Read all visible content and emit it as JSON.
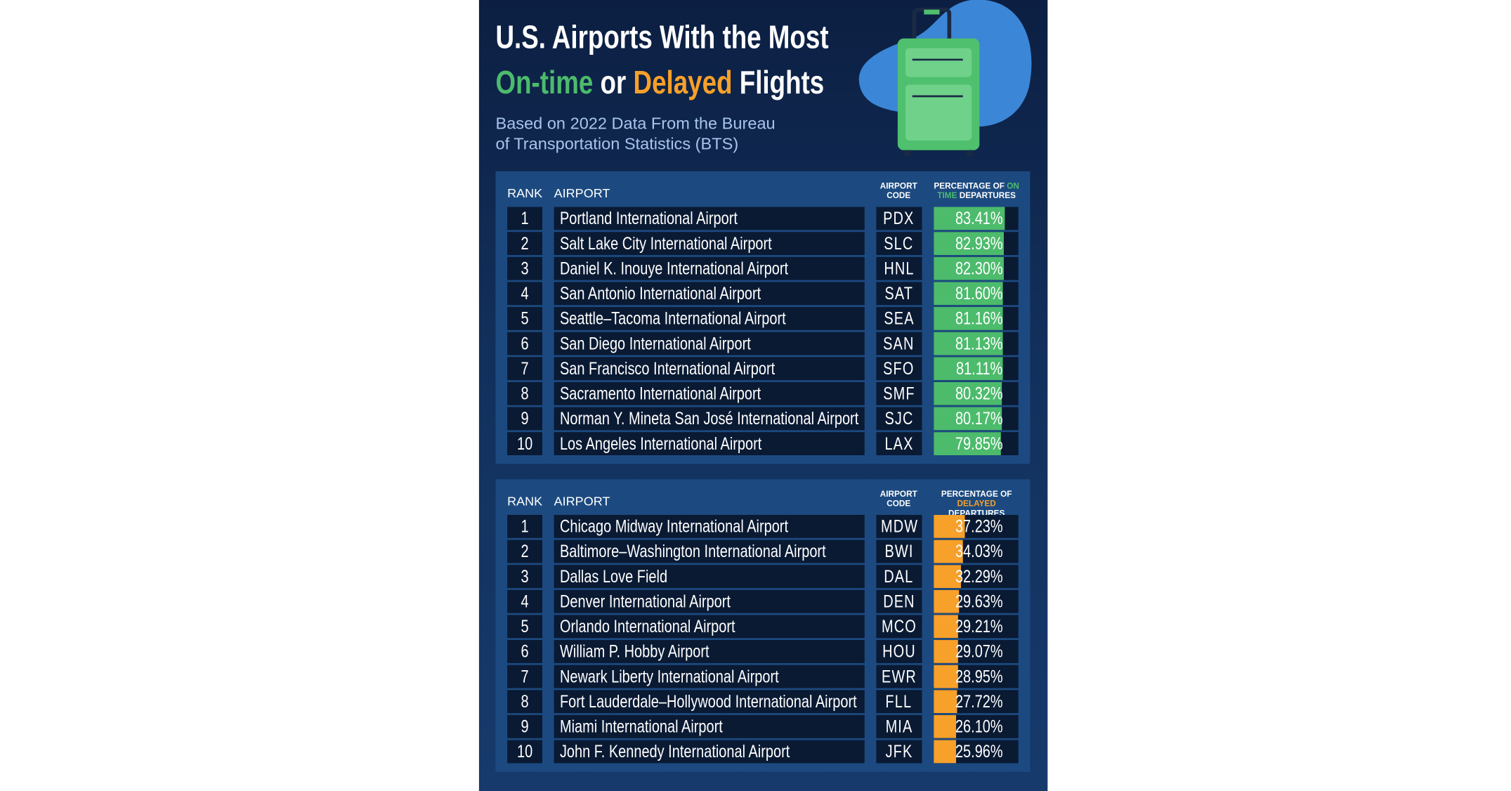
{
  "header": {
    "title_line1": "U.S. Airports With the Most",
    "title_on_time": "On-time",
    "title_or": "or",
    "title_delayed": "Delayed",
    "title_flights": "Flights",
    "subtitle_line1": "Based on 2022 Data From the Bureau",
    "subtitle_line2": "of Transportation Statistics (BTS)"
  },
  "tables": [
    {
      "highlight_color": "#4cbb6c",
      "columns": {
        "rank": "RANK",
        "airport": "AIRPORT",
        "code": "AIRPORT CODE",
        "percent_prefix": "PERCENTAGE OF",
        "percent_highlight": "ON TIME",
        "percent_suffix": "DEPARTURES"
      },
      "rows": [
        {
          "rank": 1,
          "airport": "Portland International Airport",
          "code": "PDX",
          "percent": 83.41,
          "percent_label": "83.41%"
        },
        {
          "rank": 2,
          "airport": "Salt Lake City International Airport",
          "code": "SLC",
          "percent": 82.93,
          "percent_label": "82.93%"
        },
        {
          "rank": 3,
          "airport": "Daniel K. Inouye International Airport",
          "code": "HNL",
          "percent": 82.3,
          "percent_label": "82.30%"
        },
        {
          "rank": 4,
          "airport": "San Antonio International Airport",
          "code": "SAT",
          "percent": 81.6,
          "percent_label": "81.60%"
        },
        {
          "rank": 5,
          "airport": "Seattle–Tacoma International Airport",
          "code": "SEA",
          "percent": 81.16,
          "percent_label": "81.16%"
        },
        {
          "rank": 6,
          "airport": "San Diego International Airport",
          "code": "SAN",
          "percent": 81.13,
          "percent_label": "81.13%"
        },
        {
          "rank": 7,
          "airport": "San Francisco International Airport",
          "code": "SFO",
          "percent": 81.11,
          "percent_label": "81.11%"
        },
        {
          "rank": 8,
          "airport": "Sacramento International Airport",
          "code": "SMF",
          "percent": 80.32,
          "percent_label": "80.32%"
        },
        {
          "rank": 9,
          "airport": "Norman Y. Mineta San José International Airport",
          "code": "SJC",
          "percent": 80.17,
          "percent_label": "80.17%"
        },
        {
          "rank": 10,
          "airport": "Los Angeles International Airport",
          "code": "LAX",
          "percent": 79.85,
          "percent_label": "79.85%"
        }
      ]
    },
    {
      "highlight_color": "#f7a02a",
      "columns": {
        "rank": "RANK",
        "airport": "AIRPORT",
        "code": "AIRPORT CODE",
        "percent_prefix": "PERCENTAGE OF",
        "percent_highlight": "DELAYED",
        "percent_suffix": "DEPARTURES"
      },
      "rows": [
        {
          "rank": 1,
          "airport": "Chicago Midway International Airport",
          "code": "MDW",
          "percent": 37.23,
          "percent_label": "37.23%"
        },
        {
          "rank": 2,
          "airport": "Baltimore–Washington International Airport",
          "code": "BWI",
          "percent": 34.03,
          "percent_label": "34.03%"
        },
        {
          "rank": 3,
          "airport": "Dallas Love Field",
          "code": "DAL",
          "percent": 32.29,
          "percent_label": "32.29%"
        },
        {
          "rank": 4,
          "airport": "Denver International Airport",
          "code": "DEN",
          "percent": 29.63,
          "percent_label": "29.63%"
        },
        {
          "rank": 5,
          "airport": "Orlando International Airport",
          "code": "MCO",
          "percent": 29.21,
          "percent_label": "29.21%"
        },
        {
          "rank": 6,
          "airport": "William P. Hobby Airport",
          "code": "HOU",
          "percent": 29.07,
          "percent_label": "29.07%"
        },
        {
          "rank": 7,
          "airport": "Newark Liberty International Airport",
          "code": "EWR",
          "percent": 28.95,
          "percent_label": "28.95%"
        },
        {
          "rank": 8,
          "airport": "Fort Lauderdale–Hollywood International Airport",
          "code": "FLL",
          "percent": 27.72,
          "percent_label": "27.72%"
        },
        {
          "rank": 9,
          "airport": "Miami International Airport",
          "code": "MIA",
          "percent": 26.1,
          "percent_label": "26.10%"
        },
        {
          "rank": 10,
          "airport": "John F. Kennedy International Airport",
          "code": "JFK",
          "percent": 25.96,
          "percent_label": "25.96%"
        }
      ]
    }
  ]
}
